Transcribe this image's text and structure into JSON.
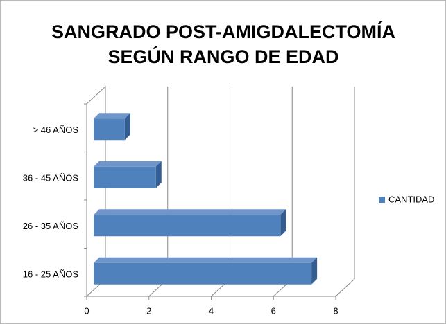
{
  "chart_data": {
    "type": "bar3d_horizontal",
    "title": [
      "SANGRADO POST-AMIGDALECTOMÍA",
      "SEGÚN RANGO DE EDAD"
    ],
    "categories": [
      "16 - 25 AÑOS",
      "26 - 35 AÑOS",
      "36 - 45 AÑOS",
      "> 46 AÑOS"
    ],
    "series": [
      {
        "name": "CANTIDAD",
        "color": "#4f81bd",
        "values": [
          7,
          6,
          2,
          1
        ]
      }
    ],
    "xlim": [
      0,
      8
    ],
    "xticks": [
      0,
      2,
      4,
      6,
      8
    ],
    "grid": true,
    "legend": "right"
  }
}
